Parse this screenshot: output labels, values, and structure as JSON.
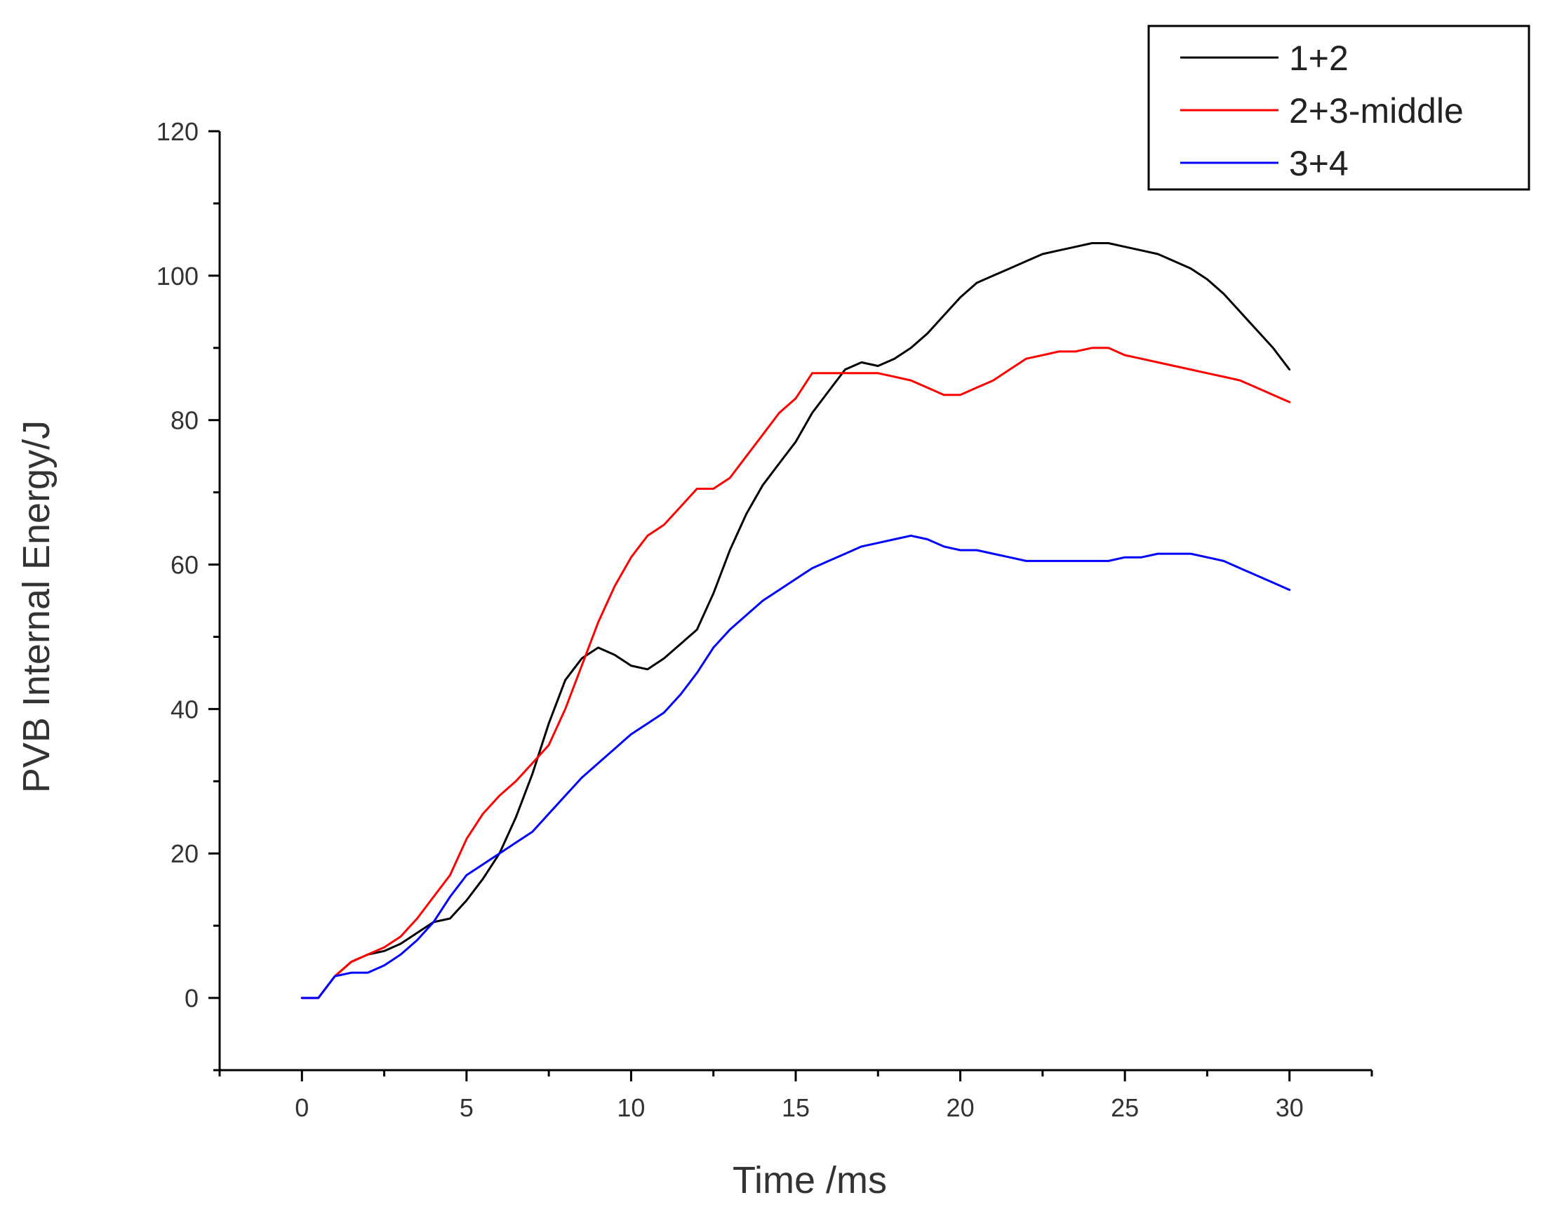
{
  "chart_data": {
    "type": "line",
    "title": "",
    "xlabel": "Time /ms",
    "ylabel": "PVB Internal Energy/J",
    "xlim": [
      -2.5,
      32.5
    ],
    "ylim": [
      -10,
      120
    ],
    "xticks": [
      0,
      5,
      10,
      15,
      20,
      25,
      30
    ],
    "yticks": [
      0,
      20,
      40,
      60,
      80,
      100,
      120
    ],
    "grid": false,
    "legend_position": "top-right",
    "series": [
      {
        "name": "1+2",
        "color": "#000000",
        "points": [
          [
            0,
            0
          ],
          [
            0.5,
            0
          ],
          [
            1,
            3
          ],
          [
            1.5,
            5
          ],
          [
            2,
            6
          ],
          [
            2.5,
            6.5
          ],
          [
            3,
            7.5
          ],
          [
            3.5,
            9
          ],
          [
            4,
            10.5
          ],
          [
            4.5,
            11
          ],
          [
            5,
            13.5
          ],
          [
            5.5,
            16.5
          ],
          [
            6,
            20
          ],
          [
            6.5,
            25
          ],
          [
            7,
            31
          ],
          [
            7.5,
            38
          ],
          [
            8,
            44
          ],
          [
            8.5,
            47
          ],
          [
            9,
            48.5
          ],
          [
            9.5,
            47.5
          ],
          [
            10,
            46
          ],
          [
            10.5,
            45.5
          ],
          [
            11,
            47
          ],
          [
            11.5,
            49
          ],
          [
            12,
            51
          ],
          [
            12.5,
            56
          ],
          [
            13,
            62
          ],
          [
            13.5,
            67
          ],
          [
            14,
            71
          ],
          [
            14.5,
            74
          ],
          [
            15,
            77
          ],
          [
            15.5,
            81
          ],
          [
            16,
            84
          ],
          [
            16.5,
            87
          ],
          [
            17,
            88
          ],
          [
            17.5,
            87.5
          ],
          [
            18,
            88.5
          ],
          [
            18.5,
            90
          ],
          [
            19,
            92
          ],
          [
            19.5,
            94.5
          ],
          [
            20,
            97
          ],
          [
            20.5,
            99
          ],
          [
            21,
            100
          ],
          [
            21.5,
            101
          ],
          [
            22,
            102
          ],
          [
            22.5,
            103
          ],
          [
            23,
            103.5
          ],
          [
            23.5,
            104
          ],
          [
            24,
            104.5
          ],
          [
            24.5,
            104.5
          ],
          [
            25,
            104
          ],
          [
            25.5,
            103.5
          ],
          [
            26,
            103
          ],
          [
            26.5,
            102
          ],
          [
            27,
            101
          ],
          [
            27.5,
            99.5
          ],
          [
            28,
            97.5
          ],
          [
            28.5,
            95
          ],
          [
            29,
            92.5
          ],
          [
            29.5,
            90
          ],
          [
            30,
            87
          ]
        ]
      },
      {
        "name": "2+3-middle",
        "color": "#ff0000",
        "points": [
          [
            0,
            0
          ],
          [
            0.5,
            0
          ],
          [
            1,
            3
          ],
          [
            1.5,
            5
          ],
          [
            2,
            6
          ],
          [
            2.5,
            7
          ],
          [
            3,
            8.5
          ],
          [
            3.5,
            11
          ],
          [
            4,
            14
          ],
          [
            4.5,
            17
          ],
          [
            5,
            22
          ],
          [
            5.5,
            25.5
          ],
          [
            6,
            28
          ],
          [
            6.5,
            30
          ],
          [
            7,
            32.5
          ],
          [
            7.5,
            35
          ],
          [
            8,
            40
          ],
          [
            8.5,
            46
          ],
          [
            9,
            52
          ],
          [
            9.5,
            57
          ],
          [
            10,
            61
          ],
          [
            10.5,
            64
          ],
          [
            11,
            65.5
          ],
          [
            11.5,
            68
          ],
          [
            12,
            70.5
          ],
          [
            12.5,
            70.5
          ],
          [
            13,
            72
          ],
          [
            13.5,
            75
          ],
          [
            14,
            78
          ],
          [
            14.5,
            81
          ],
          [
            15,
            83
          ],
          [
            15.5,
            86.5
          ],
          [
            16,
            86.5
          ],
          [
            16.5,
            86.5
          ],
          [
            17,
            86.5
          ],
          [
            17.5,
            86.5
          ],
          [
            18,
            86
          ],
          [
            18.5,
            85.5
          ],
          [
            19,
            84.5
          ],
          [
            19.5,
            83.5
          ],
          [
            20,
            83.5
          ],
          [
            20.5,
            84.5
          ],
          [
            21,
            85.5
          ],
          [
            21.5,
            87
          ],
          [
            22,
            88.5
          ],
          [
            22.5,
            89
          ],
          [
            23,
            89.5
          ],
          [
            23.5,
            89.5
          ],
          [
            24,
            90
          ],
          [
            24.5,
            90
          ],
          [
            25,
            89
          ],
          [
            25.5,
            88.5
          ],
          [
            26,
            88
          ],
          [
            26.5,
            87.5
          ],
          [
            27,
            87
          ],
          [
            27.5,
            86.5
          ],
          [
            28,
            86
          ],
          [
            28.5,
            85.5
          ],
          [
            29,
            84.5
          ],
          [
            29.5,
            83.5
          ],
          [
            30,
            82.5
          ]
        ]
      },
      {
        "name": "3+4",
        "color": "#0000ff",
        "points": [
          [
            0,
            0
          ],
          [
            0.5,
            0
          ],
          [
            1,
            3
          ],
          [
            1.5,
            3.5
          ],
          [
            2,
            3.5
          ],
          [
            2.5,
            4.5
          ],
          [
            3,
            6
          ],
          [
            3.5,
            8
          ],
          [
            4,
            10.5
          ],
          [
            4.5,
            14
          ],
          [
            5,
            17
          ],
          [
            5.5,
            18.5
          ],
          [
            6,
            20
          ],
          [
            6.5,
            21.5
          ],
          [
            7,
            23
          ],
          [
            7.5,
            25.5
          ],
          [
            8,
            28
          ],
          [
            8.5,
            30.5
          ],
          [
            9,
            32.5
          ],
          [
            9.5,
            34.5
          ],
          [
            10,
            36.5
          ],
          [
            10.5,
            38
          ],
          [
            11,
            39.5
          ],
          [
            11.5,
            42
          ],
          [
            12,
            45
          ],
          [
            12.5,
            48.5
          ],
          [
            13,
            51
          ],
          [
            13.5,
            53
          ],
          [
            14,
            55
          ],
          [
            14.5,
            56.5
          ],
          [
            15,
            58
          ],
          [
            15.5,
            59.5
          ],
          [
            16,
            60.5
          ],
          [
            16.5,
            61.5
          ],
          [
            17,
            62.5
          ],
          [
            17.5,
            63
          ],
          [
            18,
            63.5
          ],
          [
            18.5,
            64
          ],
          [
            19,
            63.5
          ],
          [
            19.5,
            62.5
          ],
          [
            20,
            62
          ],
          [
            20.5,
            62
          ],
          [
            21,
            61.5
          ],
          [
            21.5,
            61
          ],
          [
            22,
            60.5
          ],
          [
            22.5,
            60.5
          ],
          [
            23,
            60.5
          ],
          [
            23.5,
            60.5
          ],
          [
            24,
            60.5
          ],
          [
            24.5,
            60.5
          ],
          [
            25,
            61
          ],
          [
            25.5,
            61
          ],
          [
            26,
            61.5
          ],
          [
            26.5,
            61.5
          ],
          [
            27,
            61.5
          ],
          [
            27.5,
            61
          ],
          [
            28,
            60.5
          ],
          [
            28.5,
            59.5
          ],
          [
            29,
            58.5
          ],
          [
            29.5,
            57.5
          ],
          [
            30,
            56.5
          ]
        ]
      }
    ]
  }
}
